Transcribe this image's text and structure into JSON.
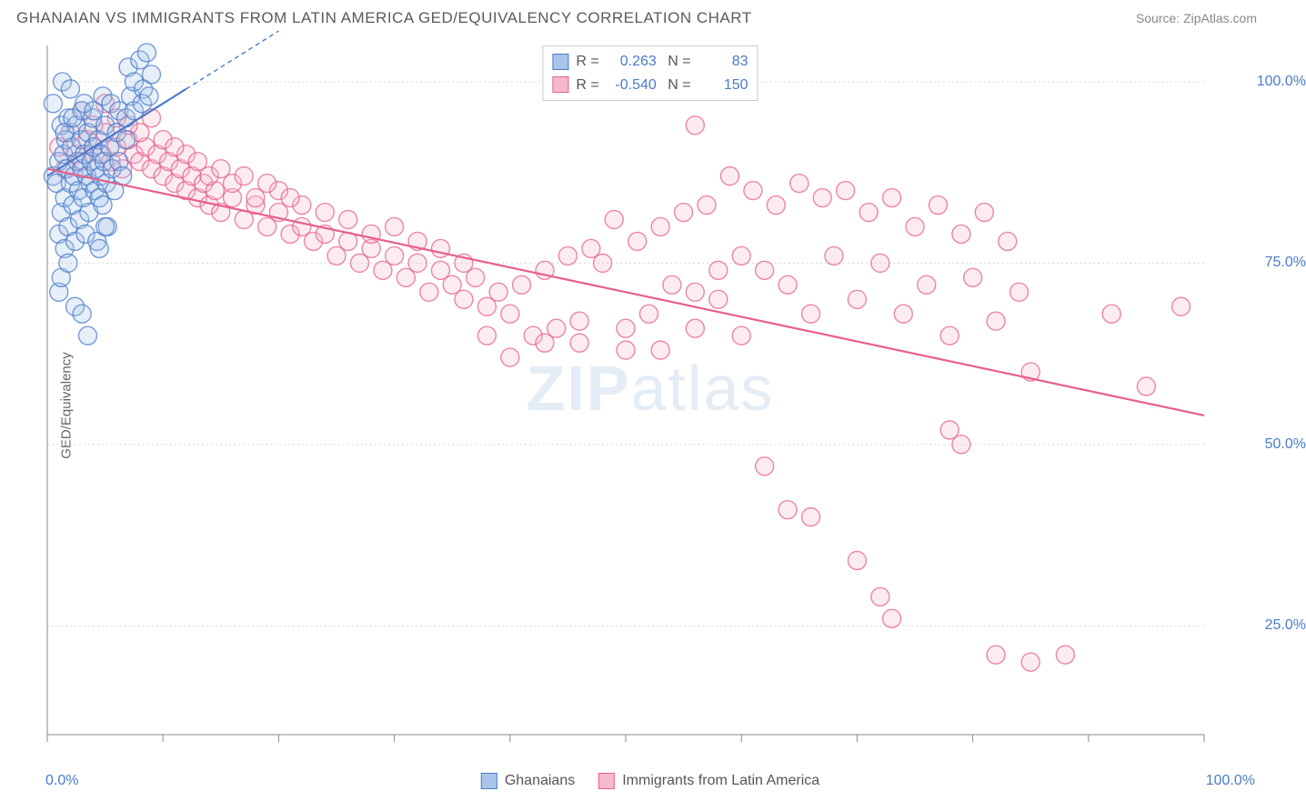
{
  "header": {
    "title": "GHANAIAN VS IMMIGRANTS FROM LATIN AMERICA GED/EQUIVALENCY CORRELATION CHART",
    "source": "Source: ZipAtlas.com"
  },
  "watermark": {
    "zip": "ZIP",
    "atlas": "atlas"
  },
  "chart": {
    "type": "scatter",
    "y_label": "GED/Equivalency",
    "background_color": "#ffffff",
    "axis_color": "#888888",
    "grid_color": "#d8d8d8",
    "grid_dash": "2,3",
    "tick_label_color": "#4a7bc8",
    "label_fontsize": 15,
    "tick_fontsize": 16,
    "xlim": [
      0,
      100
    ],
    "ylim": [
      10,
      105
    ],
    "x_ticks": [
      0,
      10,
      20,
      30,
      40,
      50,
      60,
      70,
      80,
      90,
      100
    ],
    "x_tick_labels": {
      "0": "0.0%",
      "100": "100.0%"
    },
    "y_gridlines": [
      25,
      50,
      75,
      100
    ],
    "y_tick_labels": {
      "25": "25.0%",
      "50": "50.0%",
      "75": "75.0%",
      "100": "100.0%"
    },
    "marker_radius": 10,
    "marker_fill_opacity": 0.28,
    "marker_stroke_width": 1.4,
    "trend_line_width": 2.2,
    "trend_dash": "5,4",
    "series": [
      {
        "name": "Ghanaians",
        "color": "#4a7bc8",
        "fill": "#a9c5ea",
        "R": "0.263",
        "N": "83",
        "trend": {
          "x1": 0,
          "y1": 87,
          "x2": 20,
          "y2": 107,
          "solid_until_x": 12
        },
        "points": [
          [
            0.5,
            87
          ],
          [
            0.5,
            97
          ],
          [
            0.8,
            86
          ],
          [
            1,
            89
          ],
          [
            1,
            79
          ],
          [
            1.2,
            94
          ],
          [
            1.2,
            82
          ],
          [
            1.3,
            100
          ],
          [
            1.4,
            90
          ],
          [
            1.5,
            84
          ],
          [
            1.5,
            77
          ],
          [
            1.6,
            92
          ],
          [
            1.7,
            88
          ],
          [
            1.8,
            95
          ],
          [
            1.8,
            80
          ],
          [
            2,
            86
          ],
          [
            2,
            99
          ],
          [
            2.1,
            91
          ],
          [
            2.2,
            83
          ],
          [
            2.3,
            87
          ],
          [
            2.4,
            78
          ],
          [
            2.5,
            94
          ],
          [
            2.6,
            89
          ],
          [
            2.7,
            85
          ],
          [
            2.8,
            81
          ],
          [
            2.9,
            92
          ],
          [
            3,
            88
          ],
          [
            3,
            96
          ],
          [
            3.1,
            84
          ],
          [
            3.2,
            90
          ],
          [
            3.3,
            79
          ],
          [
            3.4,
            87
          ],
          [
            3.5,
            93
          ],
          [
            3.6,
            82
          ],
          [
            3.7,
            86
          ],
          [
            3.8,
            89
          ],
          [
            3.9,
            95
          ],
          [
            4,
            91
          ],
          [
            4.1,
            85
          ],
          [
            4.2,
            88
          ],
          [
            4.3,
            78
          ],
          [
            4.4,
            92
          ],
          [
            4.5,
            84
          ],
          [
            4.6,
            87
          ],
          [
            4.7,
            90
          ],
          [
            4.8,
            83
          ],
          [
            4.9,
            89
          ],
          [
            5,
            94
          ],
          [
            5.1,
            86
          ],
          [
            5.2,
            80
          ],
          [
            5.4,
            91
          ],
          [
            5.6,
            88
          ],
          [
            5.8,
            85
          ],
          [
            6,
            93
          ],
          [
            6.2,
            89
          ],
          [
            6.5,
            87
          ],
          [
            6.8,
            92
          ],
          [
            7,
            102
          ],
          [
            7.2,
            98
          ],
          [
            7.5,
            100
          ],
          [
            8,
            103
          ],
          [
            8.3,
            99
          ],
          [
            8.6,
            104
          ],
          [
            9,
            101
          ],
          [
            1,
            71
          ],
          [
            1.2,
            73
          ],
          [
            1.8,
            75
          ],
          [
            2.4,
            69
          ],
          [
            3,
            68
          ],
          [
            3.5,
            65
          ],
          [
            4.5,
            77
          ],
          [
            5,
            80
          ],
          [
            1.5,
            93
          ],
          [
            2.2,
            95
          ],
          [
            3.2,
            97
          ],
          [
            4,
            96
          ],
          [
            4.8,
            98
          ],
          [
            5.5,
            97
          ],
          [
            6.2,
            96
          ],
          [
            6.8,
            95
          ],
          [
            7.5,
            96
          ],
          [
            8.2,
            97
          ],
          [
            8.8,
            98
          ]
        ]
      },
      {
        "name": "Immigrants from Latin America",
        "color": "#e75f8a",
        "fill": "#f5b9ce",
        "R": "-0.540",
        "N": "150",
        "trend": {
          "x1": 0,
          "y1": 88,
          "x2": 100,
          "y2": 54,
          "solid_until_x": 100
        },
        "points": [
          [
            1,
            91
          ],
          [
            1.5,
            88
          ],
          [
            2,
            93
          ],
          [
            2.5,
            90
          ],
          [
            3,
            89
          ],
          [
            3.5,
            92
          ],
          [
            4,
            91
          ],
          [
            4.5,
            90
          ],
          [
            5,
            93
          ],
          [
            5.5,
            89
          ],
          [
            6,
            91
          ],
          [
            6.5,
            88
          ],
          [
            7,
            92
          ],
          [
            7.5,
            90
          ],
          [
            8,
            89
          ],
          [
            8.5,
            91
          ],
          [
            9,
            88
          ],
          [
            9.5,
            90
          ],
          [
            10,
            87
          ],
          [
            10.5,
            89
          ],
          [
            11,
            86
          ],
          [
            11.5,
            88
          ],
          [
            12,
            85
          ],
          [
            12.5,
            87
          ],
          [
            13,
            84
          ],
          [
            13.5,
            86
          ],
          [
            14,
            83
          ],
          [
            14.5,
            85
          ],
          [
            15,
            82
          ],
          [
            16,
            84
          ],
          [
            17,
            81
          ],
          [
            18,
            83
          ],
          [
            19,
            80
          ],
          [
            20,
            82
          ],
          [
            21,
            79
          ],
          [
            22,
            80
          ],
          [
            23,
            78
          ],
          [
            24,
            79
          ],
          [
            25,
            76
          ],
          [
            26,
            78
          ],
          [
            27,
            75
          ],
          [
            28,
            77
          ],
          [
            29,
            74
          ],
          [
            30,
            76
          ],
          [
            31,
            73
          ],
          [
            32,
            75
          ],
          [
            33,
            71
          ],
          [
            34,
            74
          ],
          [
            35,
            72
          ],
          [
            36,
            70
          ],
          [
            37,
            73
          ],
          [
            38,
            69
          ],
          [
            39,
            71
          ],
          [
            40,
            68
          ],
          [
            41,
            72
          ],
          [
            42,
            65
          ],
          [
            43,
            74
          ],
          [
            44,
            66
          ],
          [
            45,
            76
          ],
          [
            46,
            64
          ],
          [
            47,
            77
          ],
          [
            48,
            75
          ],
          [
            49,
            81
          ],
          [
            50,
            63
          ],
          [
            51,
            78
          ],
          [
            52,
            68
          ],
          [
            53,
            80
          ],
          [
            54,
            72
          ],
          [
            55,
            82
          ],
          [
            56,
            66
          ],
          [
            56,
            94
          ],
          [
            57,
            83
          ],
          [
            58,
            70
          ],
          [
            59,
            87
          ],
          [
            60,
            65
          ],
          [
            61,
            85
          ],
          [
            62,
            74
          ],
          [
            63,
            83
          ],
          [
            64,
            72
          ],
          [
            65,
            86
          ],
          [
            66,
            68
          ],
          [
            67,
            84
          ],
          [
            68,
            76
          ],
          [
            69,
            85
          ],
          [
            70,
            70
          ],
          [
            71,
            82
          ],
          [
            72,
            75
          ],
          [
            73,
            84
          ],
          [
            74,
            68
          ],
          [
            75,
            80
          ],
          [
            76,
            72
          ],
          [
            77,
            83
          ],
          [
            78,
            65
          ],
          [
            79,
            79
          ],
          [
            80,
            73
          ],
          [
            81,
            82
          ],
          [
            82,
            67
          ],
          [
            83,
            78
          ],
          [
            84,
            71
          ],
          [
            85,
            60
          ],
          [
            62,
            47
          ],
          [
            64,
            41
          ],
          [
            66,
            40
          ],
          [
            70,
            34
          ],
          [
            72,
            29
          ],
          [
            73,
            26
          ],
          [
            78,
            52
          ],
          [
            79,
            50
          ],
          [
            82,
            21
          ],
          [
            85,
            20
          ],
          [
            88,
            21
          ],
          [
            92,
            68
          ],
          [
            95,
            58
          ],
          [
            98,
            69
          ],
          [
            38,
            65
          ],
          [
            40,
            62
          ],
          [
            43,
            64
          ],
          [
            46,
            67
          ],
          [
            50,
            66
          ],
          [
            53,
            63
          ],
          [
            56,
            71
          ],
          [
            58,
            74
          ],
          [
            60,
            76
          ],
          [
            14,
            87
          ],
          [
            16,
            86
          ],
          [
            18,
            84
          ],
          [
            20,
            85
          ],
          [
            22,
            83
          ],
          [
            24,
            82
          ],
          [
            26,
            81
          ],
          [
            28,
            79
          ],
          [
            30,
            80
          ],
          [
            32,
            78
          ],
          [
            34,
            77
          ],
          [
            36,
            75
          ],
          [
            8,
            93
          ],
          [
            10,
            92
          ],
          [
            12,
            90
          ],
          [
            6,
            95
          ],
          [
            4,
            94
          ],
          [
            3,
            96
          ],
          [
            5,
            97
          ],
          [
            7,
            94
          ],
          [
            9,
            95
          ],
          [
            11,
            91
          ],
          [
            13,
            89
          ],
          [
            15,
            88
          ],
          [
            17,
            87
          ],
          [
            19,
            86
          ],
          [
            21,
            84
          ]
        ]
      }
    ],
    "legend_bottom": [
      {
        "label": "Ghanaians",
        "color": "#4a7bc8",
        "fill": "#a9c5ea"
      },
      {
        "label": "Immigrants from Latin America",
        "color": "#e75f8a",
        "fill": "#f5b9ce"
      }
    ]
  }
}
